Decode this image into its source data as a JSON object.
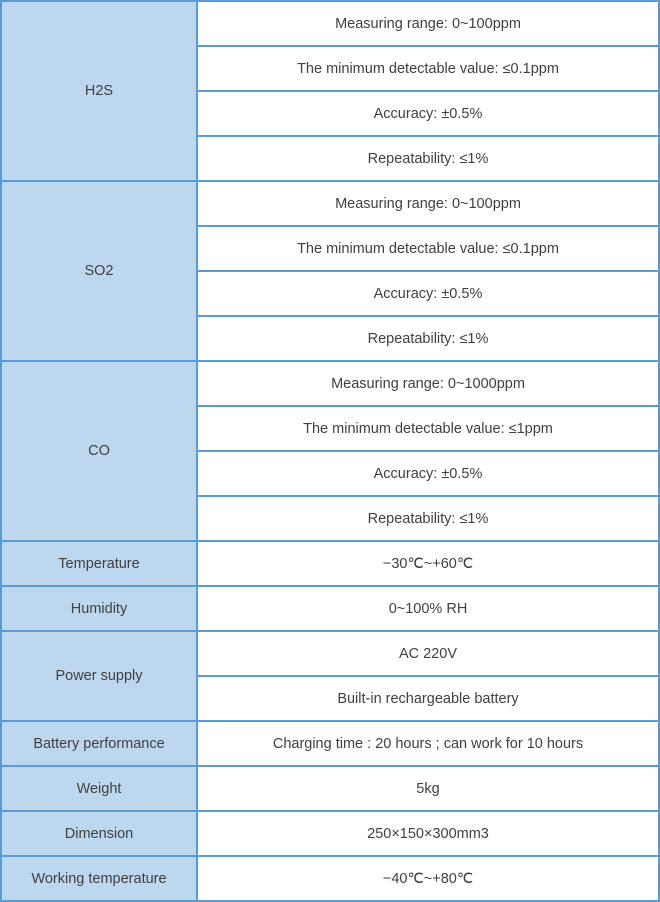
{
  "colors": {
    "border": "#5b9bd5",
    "label_bg": "#bdd7ee",
    "value_bg": "#ffffff",
    "text": "#404040"
  },
  "table": {
    "groups": [
      {
        "label": "H2S",
        "rows": [
          "Measuring range: 0~100ppm",
          "The minimum detectable value: ≤0.1ppm",
          "Accuracy: ±0.5%",
          "Repeatability: ≤1%"
        ]
      },
      {
        "label": "SO2",
        "rows": [
          "Measuring range: 0~100ppm",
          "The minimum detectable value: ≤0.1ppm",
          "Accuracy: ±0.5%",
          "Repeatability: ≤1%"
        ]
      },
      {
        "label": "CO",
        "rows": [
          "Measuring range: 0~1000ppm",
          "The minimum detectable value: ≤1ppm",
          "Accuracy: ±0.5%",
          "Repeatability: ≤1%"
        ]
      },
      {
        "label": "Temperature",
        "rows": [
          "−30℃~+60℃"
        ]
      },
      {
        "label": "Humidity",
        "rows": [
          "0~100% RH"
        ]
      },
      {
        "label": "Power supply",
        "rows": [
          "AC 220V",
          "Built-in rechargeable battery"
        ]
      },
      {
        "label": "Battery performance",
        "rows": [
          "Charging time : 20 hours ; can work for 10 hours"
        ]
      },
      {
        "label": "Weight",
        "rows": [
          "5kg"
        ]
      },
      {
        "label": "Dimension",
        "rows": [
          "250×150×300mm3"
        ]
      },
      {
        "label": "Working temperature",
        "rows": [
          "−40℃~+80℃"
        ]
      }
    ]
  }
}
